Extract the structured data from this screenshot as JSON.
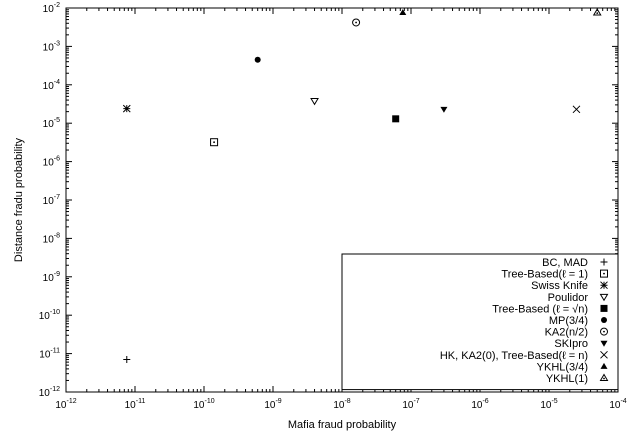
{
  "chart_data": {
    "type": "scatter",
    "title": "",
    "xlabel": "Mafia fraud probability",
    "ylabel": "Distance fradu probability",
    "x_scale": "log",
    "y_scale": "log",
    "xlim": [
      1e-12,
      0.0001
    ],
    "ylim": [
      1e-12,
      0.01
    ],
    "x_ticks": [
      {
        "base": "10",
        "exp": "-12",
        "value": 1e-12
      },
      {
        "base": "10",
        "exp": "-11",
        "value": 1e-11
      },
      {
        "base": "10",
        "exp": "-10",
        "value": 1e-10
      },
      {
        "base": "10",
        "exp": "-9",
        "value": 1e-09
      },
      {
        "base": "10",
        "exp": "-8",
        "value": 1e-08
      },
      {
        "base": "10",
        "exp": "-7",
        "value": 1e-07
      },
      {
        "base": "10",
        "exp": "-6",
        "value": 1e-06
      },
      {
        "base": "10",
        "exp": "-5",
        "value": 1e-05
      },
      {
        "base": "10",
        "exp": "-4",
        "value": 0.0001
      }
    ],
    "y_ticks": [
      {
        "base": "10",
        "exp": "-12",
        "value": 1e-12
      },
      {
        "base": "10",
        "exp": "-11",
        "value": 1e-11
      },
      {
        "base": "10",
        "exp": "-10",
        "value": 1e-10
      },
      {
        "base": "10",
        "exp": "-9",
        "value": 1e-09
      },
      {
        "base": "10",
        "exp": "-8",
        "value": 1e-08
      },
      {
        "base": "10",
        "exp": "-7",
        "value": 1e-07
      },
      {
        "base": "10",
        "exp": "-6",
        "value": 1e-06
      },
      {
        "base": "10",
        "exp": "-5",
        "value": 1e-05
      },
      {
        "base": "10",
        "exp": "-4",
        "value": 0.0001
      },
      {
        "base": "10",
        "exp": "-3",
        "value": 0.001
      },
      {
        "base": "10",
        "exp": "-2",
        "value": 0.01
      }
    ],
    "legend_position": "bottom-right",
    "grid": false,
    "series": [
      {
        "name": "BC, MAD",
        "marker": "plus",
        "points": [
          [
            7.6e-12,
            7e-12
          ]
        ]
      },
      {
        "name": "Tree-Based(ℓ = 1)",
        "marker": "square-dot",
        "points": [
          [
            1.4e-10,
            3.2e-06
          ]
        ]
      },
      {
        "name": "Swiss Knife",
        "marker": "star",
        "points": [
          [
            7.6e-12,
            2.4e-05
          ]
        ]
      },
      {
        "name": "Poulidor",
        "marker": "triangle-down-open",
        "points": [
          [
            4e-09,
            3.8e-05
          ]
        ]
      },
      {
        "name": "Tree-Based (ℓ = √n)",
        "marker": "square-filled",
        "points": [
          [
            6e-08,
            1.3e-05
          ]
        ]
      },
      {
        "name": "MP(3/4)",
        "marker": "circle-filled",
        "points": [
          [
            6e-10,
            0.00045
          ]
        ]
      },
      {
        "name": "KA2(n/2)",
        "marker": "circle-dot",
        "points": [
          [
            1.6e-08,
            0.0042
          ]
        ]
      },
      {
        "name": "SKIpro",
        "marker": "triangle-down-filled",
        "points": [
          [
            3e-07,
            2.3e-05
          ]
        ]
      },
      {
        "name": "HK, KA2(0), Tree-Based(ℓ = n)",
        "marker": "cross",
        "points": [
          [
            2.5e-05,
            2.3e-05
          ]
        ]
      },
      {
        "name": "YKHL(3/4)",
        "marker": "triangle-up-filled",
        "points": [
          [
            7.6e-08,
            0.0076
          ]
        ]
      },
      {
        "name": "YKHL(1)",
        "marker": "triangle-up-dot",
        "points": [
          [
            5e-05,
            0.0076
          ]
        ]
      }
    ]
  }
}
